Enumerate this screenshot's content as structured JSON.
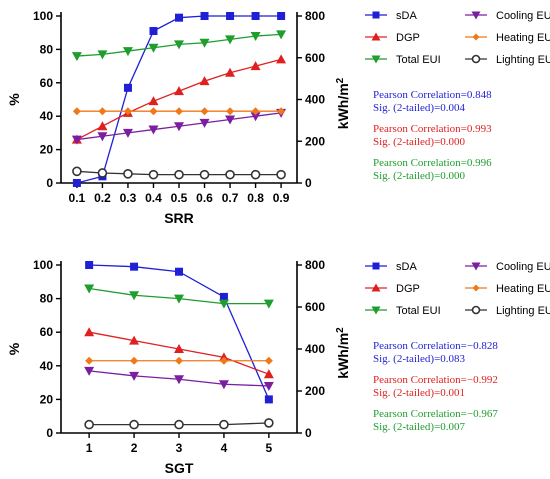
{
  "colors": {
    "sDA": "#1f1fd6",
    "DGP": "#e02020",
    "Total EUI": "#1e9e2e",
    "Cooling EUI": "#7b1fa2",
    "Heating EUI": "#f07818",
    "Lighting EUI": "#333333"
  },
  "chart_data": [
    {
      "type": "line",
      "xlabel": "SRR",
      "ylabel_left": "%",
      "ylabel_right": "kWh/m2",
      "ylim_left": [
        0,
        100
      ],
      "ylim_right": [
        0,
        800
      ],
      "yticks_left": [
        0,
        20,
        40,
        60,
        80,
        100
      ],
      "yticks_right": [
        0,
        200,
        400,
        600,
        800
      ],
      "x": [
        "0.1",
        "0.2",
        "0.3",
        "0.4",
        "0.5",
        "0.6",
        "0.7",
        "0.8",
        "0.9"
      ],
      "series": [
        {
          "name": "sDA",
          "axis": "left",
          "marker": "square",
          "values": [
            0,
            4,
            57,
            91,
            99,
            100,
            100,
            100,
            100
          ]
        },
        {
          "name": "DGP",
          "axis": "left",
          "marker": "triangle-up",
          "values": [
            26,
            34,
            42,
            49,
            55,
            61,
            66,
            70,
            74
          ]
        },
        {
          "name": "Total EUI",
          "axis": "left",
          "marker": "triangle-down",
          "values": [
            76,
            77,
            79,
            81,
            83,
            84,
            86,
            88,
            89
          ]
        },
        {
          "name": "Cooling EUI",
          "axis": "left",
          "marker": "triangle-down",
          "values": [
            26,
            28,
            30,
            32,
            34,
            36,
            38,
            40,
            42
          ]
        },
        {
          "name": "Heating EUI",
          "axis": "left",
          "marker": "diamond",
          "values": [
            43,
            43,
            43,
            43,
            43,
            43,
            43,
            43,
            43
          ]
        },
        {
          "name": "Lighting EUI",
          "axis": "left",
          "marker": "circle",
          "values": [
            7,
            6,
            5.5,
            5,
            5,
            5,
            5,
            5,
            5
          ]
        }
      ],
      "legend": [
        [
          "sDA",
          "Cooling EUI"
        ],
        [
          "DGP",
          "Heating EUI"
        ],
        [
          "Total EUI",
          "Lighting EUI"
        ]
      ],
      "annotations": [
        {
          "series": "sDA",
          "lines": [
            "Pearson Correlation=0.848",
            "Sig. (2-tailed)=0.004"
          ]
        },
        {
          "series": "DGP",
          "lines": [
            "Pearson Correlation=0.993",
            "Sig. (2-tailed)=0.000"
          ]
        },
        {
          "series": "Total EUI",
          "lines": [
            "Pearson Correlation=0.996",
            "Sig. (2-tailed)=0.000"
          ]
        }
      ]
    },
    {
      "type": "line",
      "xlabel": "SGT",
      "ylabel_left": "%",
      "ylabel_right": "kWh/m2",
      "ylim_left": [
        0,
        100
      ],
      "ylim_right": [
        0,
        800
      ],
      "yticks_left": [
        0,
        20,
        40,
        60,
        80,
        100
      ],
      "yticks_right": [
        0,
        200,
        400,
        600,
        800
      ],
      "x": [
        "1",
        "2",
        "3",
        "4",
        "5"
      ],
      "series": [
        {
          "name": "sDA",
          "axis": "left",
          "marker": "square",
          "values": [
            100,
            99,
            96,
            81,
            20
          ]
        },
        {
          "name": "DGP",
          "axis": "left",
          "marker": "triangle-up",
          "values": [
            60,
            55,
            50,
            45,
            35
          ]
        },
        {
          "name": "Total EUI",
          "axis": "left",
          "marker": "triangle-down",
          "values": [
            86,
            82,
            80,
            77,
            77
          ]
        },
        {
          "name": "Cooling EUI",
          "axis": "left",
          "marker": "triangle-down",
          "values": [
            37,
            34,
            32,
            29,
            28
          ]
        },
        {
          "name": "Heating EUI",
          "axis": "left",
          "marker": "diamond",
          "values": [
            43,
            43,
            43,
            43,
            43
          ]
        },
        {
          "name": "Lighting EUI",
          "axis": "left",
          "marker": "circle",
          "values": [
            5,
            5,
            5,
            5,
            6
          ]
        }
      ],
      "legend": [
        [
          "sDA",
          "Cooling EUI"
        ],
        [
          "DGP",
          "Heating EUI"
        ],
        [
          "Total EUI",
          "Lighting EUI"
        ]
      ],
      "annotations": [
        {
          "series": "sDA",
          "lines": [
            "Pearson Correlation=−0.828",
            "Sig. (2-tailed)=0.083"
          ]
        },
        {
          "series": "DGP",
          "lines": [
            "Pearson Correlation=−0.992",
            "Sig. (2-tailed)=0.001"
          ]
        },
        {
          "series": "Total EUI",
          "lines": [
            "Pearson Correlation=−0.967",
            "Sig. (2-tailed)=0.007"
          ]
        }
      ]
    }
  ]
}
